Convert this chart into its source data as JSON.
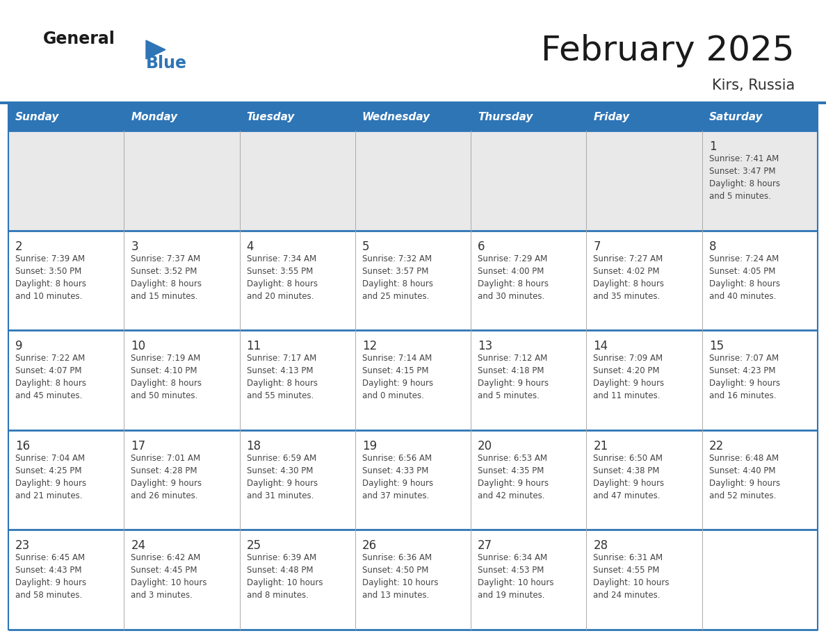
{
  "title": "February 2025",
  "location": "Kirs, Russia",
  "header_bg": "#2E75B6",
  "header_text_color": "#FFFFFF",
  "day_names": [
    "Sunday",
    "Monday",
    "Tuesday",
    "Wednesday",
    "Thursday",
    "Friday",
    "Saturday"
  ],
  "row0_bg": "#E9E9E9",
  "cell_bg": "#FFFFFF",
  "separator_color": "#2E75B6",
  "thin_line_color": "#AAAAAA",
  "date_color": "#333333",
  "info_color": "#444444",
  "title_color": "#1a1a1a",
  "location_color": "#333333",
  "logo_general_color": "#1a1a1a",
  "logo_blue_color": "#2E75B6",
  "calendar_data": [
    [
      {
        "day": null,
        "info": ""
      },
      {
        "day": null,
        "info": ""
      },
      {
        "day": null,
        "info": ""
      },
      {
        "day": null,
        "info": ""
      },
      {
        "day": null,
        "info": ""
      },
      {
        "day": null,
        "info": ""
      },
      {
        "day": 1,
        "info": "Sunrise: 7:41 AM\nSunset: 3:47 PM\nDaylight: 8 hours\nand 5 minutes."
      }
    ],
    [
      {
        "day": 2,
        "info": "Sunrise: 7:39 AM\nSunset: 3:50 PM\nDaylight: 8 hours\nand 10 minutes."
      },
      {
        "day": 3,
        "info": "Sunrise: 7:37 AM\nSunset: 3:52 PM\nDaylight: 8 hours\nand 15 minutes."
      },
      {
        "day": 4,
        "info": "Sunrise: 7:34 AM\nSunset: 3:55 PM\nDaylight: 8 hours\nand 20 minutes."
      },
      {
        "day": 5,
        "info": "Sunrise: 7:32 AM\nSunset: 3:57 PM\nDaylight: 8 hours\nand 25 minutes."
      },
      {
        "day": 6,
        "info": "Sunrise: 7:29 AM\nSunset: 4:00 PM\nDaylight: 8 hours\nand 30 minutes."
      },
      {
        "day": 7,
        "info": "Sunrise: 7:27 AM\nSunset: 4:02 PM\nDaylight: 8 hours\nand 35 minutes."
      },
      {
        "day": 8,
        "info": "Sunrise: 7:24 AM\nSunset: 4:05 PM\nDaylight: 8 hours\nand 40 minutes."
      }
    ],
    [
      {
        "day": 9,
        "info": "Sunrise: 7:22 AM\nSunset: 4:07 PM\nDaylight: 8 hours\nand 45 minutes."
      },
      {
        "day": 10,
        "info": "Sunrise: 7:19 AM\nSunset: 4:10 PM\nDaylight: 8 hours\nand 50 minutes."
      },
      {
        "day": 11,
        "info": "Sunrise: 7:17 AM\nSunset: 4:13 PM\nDaylight: 8 hours\nand 55 minutes."
      },
      {
        "day": 12,
        "info": "Sunrise: 7:14 AM\nSunset: 4:15 PM\nDaylight: 9 hours\nand 0 minutes."
      },
      {
        "day": 13,
        "info": "Sunrise: 7:12 AM\nSunset: 4:18 PM\nDaylight: 9 hours\nand 5 minutes."
      },
      {
        "day": 14,
        "info": "Sunrise: 7:09 AM\nSunset: 4:20 PM\nDaylight: 9 hours\nand 11 minutes."
      },
      {
        "day": 15,
        "info": "Sunrise: 7:07 AM\nSunset: 4:23 PM\nDaylight: 9 hours\nand 16 minutes."
      }
    ],
    [
      {
        "day": 16,
        "info": "Sunrise: 7:04 AM\nSunset: 4:25 PM\nDaylight: 9 hours\nand 21 minutes."
      },
      {
        "day": 17,
        "info": "Sunrise: 7:01 AM\nSunset: 4:28 PM\nDaylight: 9 hours\nand 26 minutes."
      },
      {
        "day": 18,
        "info": "Sunrise: 6:59 AM\nSunset: 4:30 PM\nDaylight: 9 hours\nand 31 minutes."
      },
      {
        "day": 19,
        "info": "Sunrise: 6:56 AM\nSunset: 4:33 PM\nDaylight: 9 hours\nand 37 minutes."
      },
      {
        "day": 20,
        "info": "Sunrise: 6:53 AM\nSunset: 4:35 PM\nDaylight: 9 hours\nand 42 minutes."
      },
      {
        "day": 21,
        "info": "Sunrise: 6:50 AM\nSunset: 4:38 PM\nDaylight: 9 hours\nand 47 minutes."
      },
      {
        "day": 22,
        "info": "Sunrise: 6:48 AM\nSunset: 4:40 PM\nDaylight: 9 hours\nand 52 minutes."
      }
    ],
    [
      {
        "day": 23,
        "info": "Sunrise: 6:45 AM\nSunset: 4:43 PM\nDaylight: 9 hours\nand 58 minutes."
      },
      {
        "day": 24,
        "info": "Sunrise: 6:42 AM\nSunset: 4:45 PM\nDaylight: 10 hours\nand 3 minutes."
      },
      {
        "day": 25,
        "info": "Sunrise: 6:39 AM\nSunset: 4:48 PM\nDaylight: 10 hours\nand 8 minutes."
      },
      {
        "day": 26,
        "info": "Sunrise: 6:36 AM\nSunset: 4:50 PM\nDaylight: 10 hours\nand 13 minutes."
      },
      {
        "day": 27,
        "info": "Sunrise: 6:34 AM\nSunset: 4:53 PM\nDaylight: 10 hours\nand 19 minutes."
      },
      {
        "day": 28,
        "info": "Sunrise: 6:31 AM\nSunset: 4:55 PM\nDaylight: 10 hours\nand 24 minutes."
      },
      {
        "day": null,
        "info": ""
      }
    ]
  ]
}
